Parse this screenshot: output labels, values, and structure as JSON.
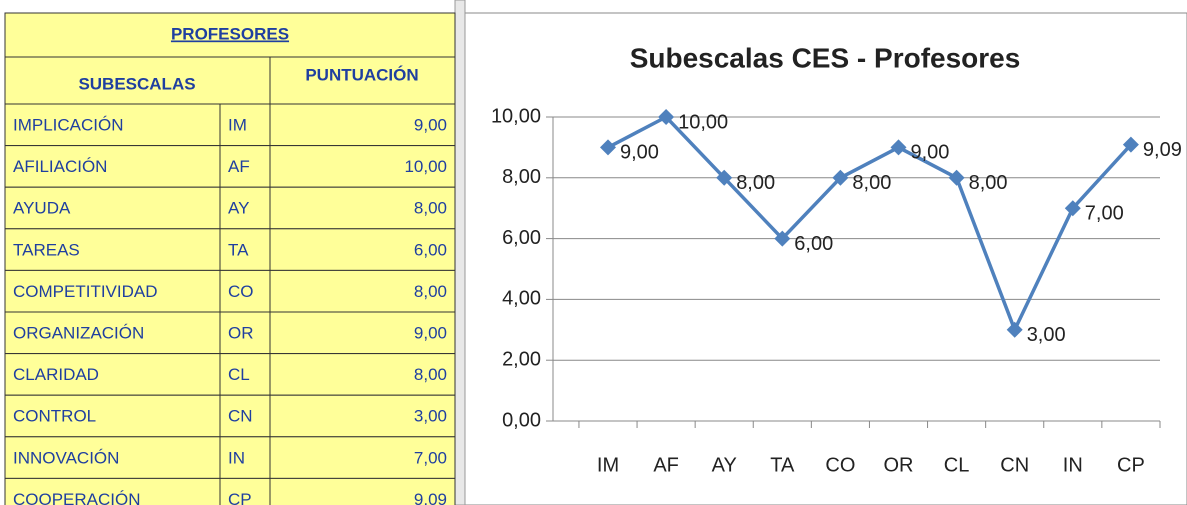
{
  "table": {
    "title": "PROFESORES",
    "headers": [
      "SUBESCALAS",
      "PUNTUACIÓN"
    ],
    "rows": [
      [
        "IMPLICACIÓN",
        "IM",
        "9,00"
      ],
      [
        "AFILIACIÓN",
        "AF",
        "10,00"
      ],
      [
        "AYUDA",
        "AY",
        "8,00"
      ],
      [
        "TAREAS",
        "TA",
        "6,00"
      ],
      [
        "COMPETITIVIDAD",
        "CO",
        "8,00"
      ],
      [
        "ORGANIZACIÓN",
        "OR",
        "9,00"
      ],
      [
        "CLARIDAD",
        "CL",
        "8,00"
      ],
      [
        "CONTROL",
        "CN",
        "3,00"
      ],
      [
        "INNOVACIÓN",
        "IN",
        "7,00"
      ],
      [
        "COOPERACIÓN",
        "CP",
        "9,09"
      ]
    ]
  },
  "chart_data": {
    "type": "line",
    "title": "Subescalas CES - Profesores",
    "categories": [
      "IM",
      "AF",
      "AY",
      "TA",
      "CO",
      "OR",
      "CL",
      "CN",
      "IN",
      "CP"
    ],
    "values": [
      9,
      10,
      8,
      6,
      8,
      9,
      8,
      3,
      7,
      9.09
    ],
    "value_labels": [
      "9,00",
      "10,00",
      "8,00",
      "6,00",
      "8,00",
      "9,00",
      "8,00",
      "3,00",
      "7,00",
      "9,09"
    ],
    "color": "#4f81bd",
    "ylim": [
      0,
      10
    ],
    "yticks": [
      {
        "value": 0,
        "label": "0,00"
      },
      {
        "value": 2,
        "label": "2,00"
      },
      {
        "value": 4,
        "label": "4,00"
      },
      {
        "value": 6,
        "label": "6,00"
      },
      {
        "value": 8,
        "label": "8,00"
      },
      {
        "value": 10,
        "label": "10,00"
      }
    ],
    "grid": true
  }
}
